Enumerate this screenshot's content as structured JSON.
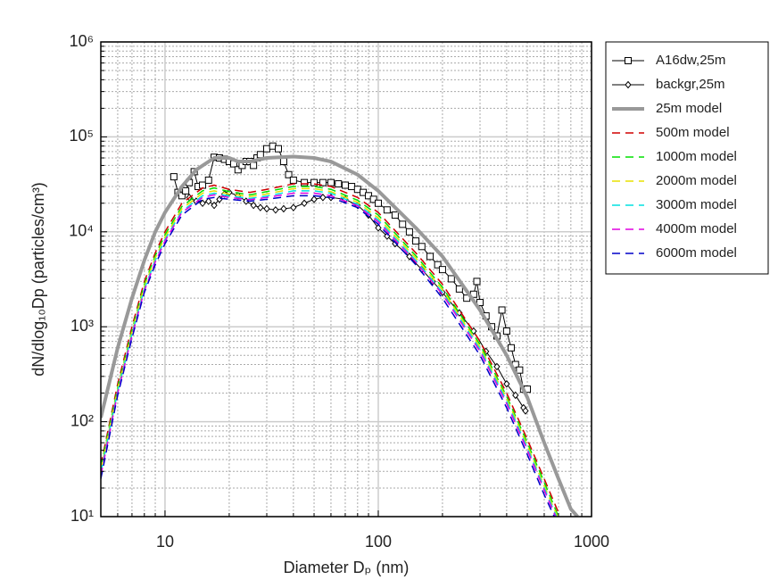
{
  "chart_data": {
    "type": "line",
    "log_x": true,
    "log_y": true,
    "grid": true,
    "minor_grid": true,
    "legend": "outside-top-right",
    "xlabel": "Diameter Dₚ (nm)",
    "ylabel": "dN/dlog₁₀Dp (particles/cm³)",
    "xlim": [
      5,
      1000
    ],
    "ylim": [
      10,
      1000000
    ],
    "xticks": [
      10,
      100,
      1000
    ],
    "yticks": [
      {
        "value": 10,
        "label": "10¹"
      },
      {
        "value": 100,
        "label": "10²"
      },
      {
        "value": 1000,
        "label": "10³"
      },
      {
        "value": 10000,
        "label": "10⁴"
      },
      {
        "value": 100000,
        "label": "10⁵"
      },
      {
        "value": 1000000,
        "label": "10⁶"
      }
    ],
    "xminorticks": [
      6,
      7,
      8,
      9,
      20,
      30,
      40,
      50,
      60,
      70,
      80,
      90,
      200,
      300,
      400,
      500,
      600,
      700,
      800,
      900
    ],
    "yminorticks": [
      20,
      30,
      40,
      50,
      60,
      70,
      80,
      90,
      200,
      300,
      400,
      500,
      600,
      700,
      800,
      900,
      2000,
      3000,
      4000,
      5000,
      6000,
      7000,
      8000,
      9000,
      20000,
      30000,
      40000,
      50000,
      60000,
      70000,
      80000,
      90000,
      200000,
      300000,
      400000,
      500000,
      600000,
      700000,
      800000,
      900000
    ],
    "series": [
      {
        "name": "A16dw,25m",
        "color": "#000000",
        "marker": "square",
        "width": 1,
        "x": [
          11,
          11.5,
          12,
          12.5,
          13,
          13.7,
          14.3,
          15,
          16,
          17,
          18,
          19,
          20,
          21,
          22,
          23,
          24,
          25,
          26,
          27,
          28,
          30,
          32,
          34,
          36,
          38,
          40,
          45,
          50,
          55,
          60,
          65,
          70,
          75,
          80,
          85,
          90,
          95,
          100,
          110,
          120,
          130,
          140,
          150,
          160,
          175,
          190,
          200,
          220,
          240,
          260,
          280,
          290,
          300,
          320,
          340,
          360,
          380,
          400,
          420,
          440,
          460,
          480,
          500
        ],
        "values": [
          38000,
          26000,
          24000,
          27000,
          33000,
          43000,
          30000,
          31000,
          35000,
          61000,
          60000,
          58000,
          55000,
          52000,
          45000,
          50000,
          55000,
          55000,
          50000,
          60000,
          65000,
          75000,
          80000,
          75000,
          55000,
          40000,
          35000,
          33000,
          33000,
          33000,
          33000,
          32000,
          31000,
          30000,
          28000,
          26000,
          24000,
          22000,
          20000,
          17000,
          15000,
          12000,
          10000,
          8000,
          7000,
          5500,
          4500,
          4000,
          3200,
          2500,
          2000,
          2200,
          3000,
          1800,
          1300,
          1000,
          800,
          1500,
          900,
          600,
          400,
          350,
          220,
          220
        ]
      },
      {
        "name": "backgr,25m",
        "color": "#000000",
        "marker": "diamond",
        "width": 1,
        "x": [
          13,
          14,
          15,
          16,
          17,
          18,
          19,
          20,
          22,
          24,
          26,
          28,
          30,
          33,
          36,
          40,
          45,
          50,
          55,
          60,
          70,
          80,
          90,
          100,
          110,
          120,
          140,
          160,
          180,
          200,
          240,
          280,
          320,
          360,
          400,
          440,
          480,
          490
        ],
        "values": [
          23000,
          21000,
          20000,
          21000,
          19000,
          22000,
          25000,
          26000,
          24000,
          21000,
          19000,
          18000,
          17500,
          17000,
          17500,
          18000,
          20000,
          22000,
          23000,
          23000,
          22000,
          19000,
          15000,
          11000,
          9000,
          7500,
          5500,
          4000,
          3000,
          2300,
          1400,
          900,
          550,
          380,
          250,
          190,
          140,
          130
        ]
      },
      {
        "name": "25m model",
        "color": "#999999",
        "width": 4,
        "x": [
          5,
          6,
          7,
          8,
          9,
          10,
          12,
          14,
          17,
          20,
          22,
          25,
          30,
          40,
          50,
          60,
          80,
          100,
          150,
          200,
          300,
          400,
          500,
          600,
          700,
          800,
          860
        ],
        "values": [
          110,
          600,
          2000,
          5000,
          10000,
          16000,
          30000,
          45000,
          60000,
          60000,
          55000,
          55000,
          60000,
          62000,
          60000,
          55000,
          40000,
          27000,
          11000,
          5500,
          1500,
          500,
          180,
          60,
          25,
          12,
          10
        ]
      },
      {
        "name": "500m model",
        "color": "#d00000",
        "dash": true,
        "width": 1.5,
        "x": [
          5,
          6,
          7,
          8,
          9,
          10,
          12,
          15,
          17,
          20,
          25,
          30,
          40,
          50,
          60,
          80,
          100,
          150,
          200,
          300,
          400,
          500,
          600,
          700
        ],
        "values": [
          35,
          250,
          1000,
          3000,
          6000,
          10000,
          20000,
          29000,
          31000,
          28000,
          26000,
          28000,
          32000,
          32000,
          30000,
          23000,
          16000,
          6000,
          2800,
          700,
          200,
          65,
          25,
          11
        ]
      },
      {
        "name": "1000m model",
        "color": "#00e000",
        "dash": true,
        "width": 1.5,
        "x": [
          5,
          6,
          7,
          8,
          9,
          10,
          12,
          15,
          17,
          20,
          25,
          30,
          40,
          50,
          60,
          80,
          100,
          150,
          200,
          300,
          400,
          500,
          600,
          700
        ],
        "values": [
          33,
          230,
          920,
          2800,
          5600,
          9300,
          18500,
          27000,
          29000,
          26500,
          24500,
          26500,
          30000,
          30000,
          28000,
          21500,
          15000,
          5600,
          2600,
          650,
          185,
          60,
          23,
          10
        ]
      },
      {
        "name": "2000m model",
        "color": "#e8e000",
        "dash": true,
        "width": 1.5,
        "x": [
          5,
          6,
          7,
          8,
          9,
          10,
          12,
          15,
          17,
          20,
          25,
          30,
          40,
          50,
          60,
          80,
          100,
          150,
          200,
          300,
          400,
          500,
          600,
          700
        ],
        "values": [
          31,
          220,
          880,
          2650,
          5300,
          8800,
          17500,
          25500,
          27000,
          25000,
          23500,
          25000,
          28500,
          28500,
          26500,
          20500,
          14000,
          5300,
          2450,
          610,
          175,
          56,
          21,
          9.5
        ]
      },
      {
        "name": "3000m model",
        "color": "#00e0e0",
        "dash": true,
        "width": 1.5,
        "x": [
          5,
          6,
          7,
          8,
          9,
          10,
          12,
          15,
          17,
          20,
          25,
          30,
          40,
          50,
          60,
          80,
          100,
          150,
          200,
          300,
          400,
          500,
          600,
          700
        ],
        "values": [
          29,
          210,
          840,
          2500,
          5000,
          8300,
          16500,
          24000,
          25500,
          23800,
          22500,
          23800,
          27000,
          27000,
          25500,
          19500,
          13300,
          5000,
          2300,
          580,
          165,
          53,
          20,
          9
        ]
      },
      {
        "name": "4000m model",
        "color": "#e000e0",
        "dash": true,
        "width": 1.5,
        "x": [
          5,
          6,
          7,
          8,
          9,
          10,
          12,
          15,
          17,
          20,
          25,
          30,
          40,
          50,
          60,
          80,
          100,
          150,
          200,
          300,
          400,
          500,
          600,
          700
        ],
        "values": [
          27,
          200,
          800,
          2400,
          4800,
          8000,
          16000,
          23000,
          24500,
          23000,
          21800,
          23000,
          25500,
          25500,
          24000,
          18800,
          12700,
          4800,
          2200,
          550,
          155,
          50,
          19,
          8.5
        ]
      },
      {
        "name": "6000m model",
        "color": "#0000c8",
        "dash": true,
        "width": 1.5,
        "x": [
          5,
          6,
          7,
          8,
          9,
          10,
          12,
          15,
          17,
          20,
          25,
          30,
          40,
          50,
          60,
          80,
          100,
          150,
          200,
          300,
          400,
          500,
          600,
          700
        ],
        "values": [
          25,
          190,
          760,
          2300,
          4500,
          7500,
          15000,
          22000,
          23000,
          22000,
          21000,
          22000,
          24000,
          24000,
          23000,
          18000,
          12000,
          4500,
          2000,
          500,
          140,
          45,
          17,
          8
        ]
      }
    ]
  }
}
